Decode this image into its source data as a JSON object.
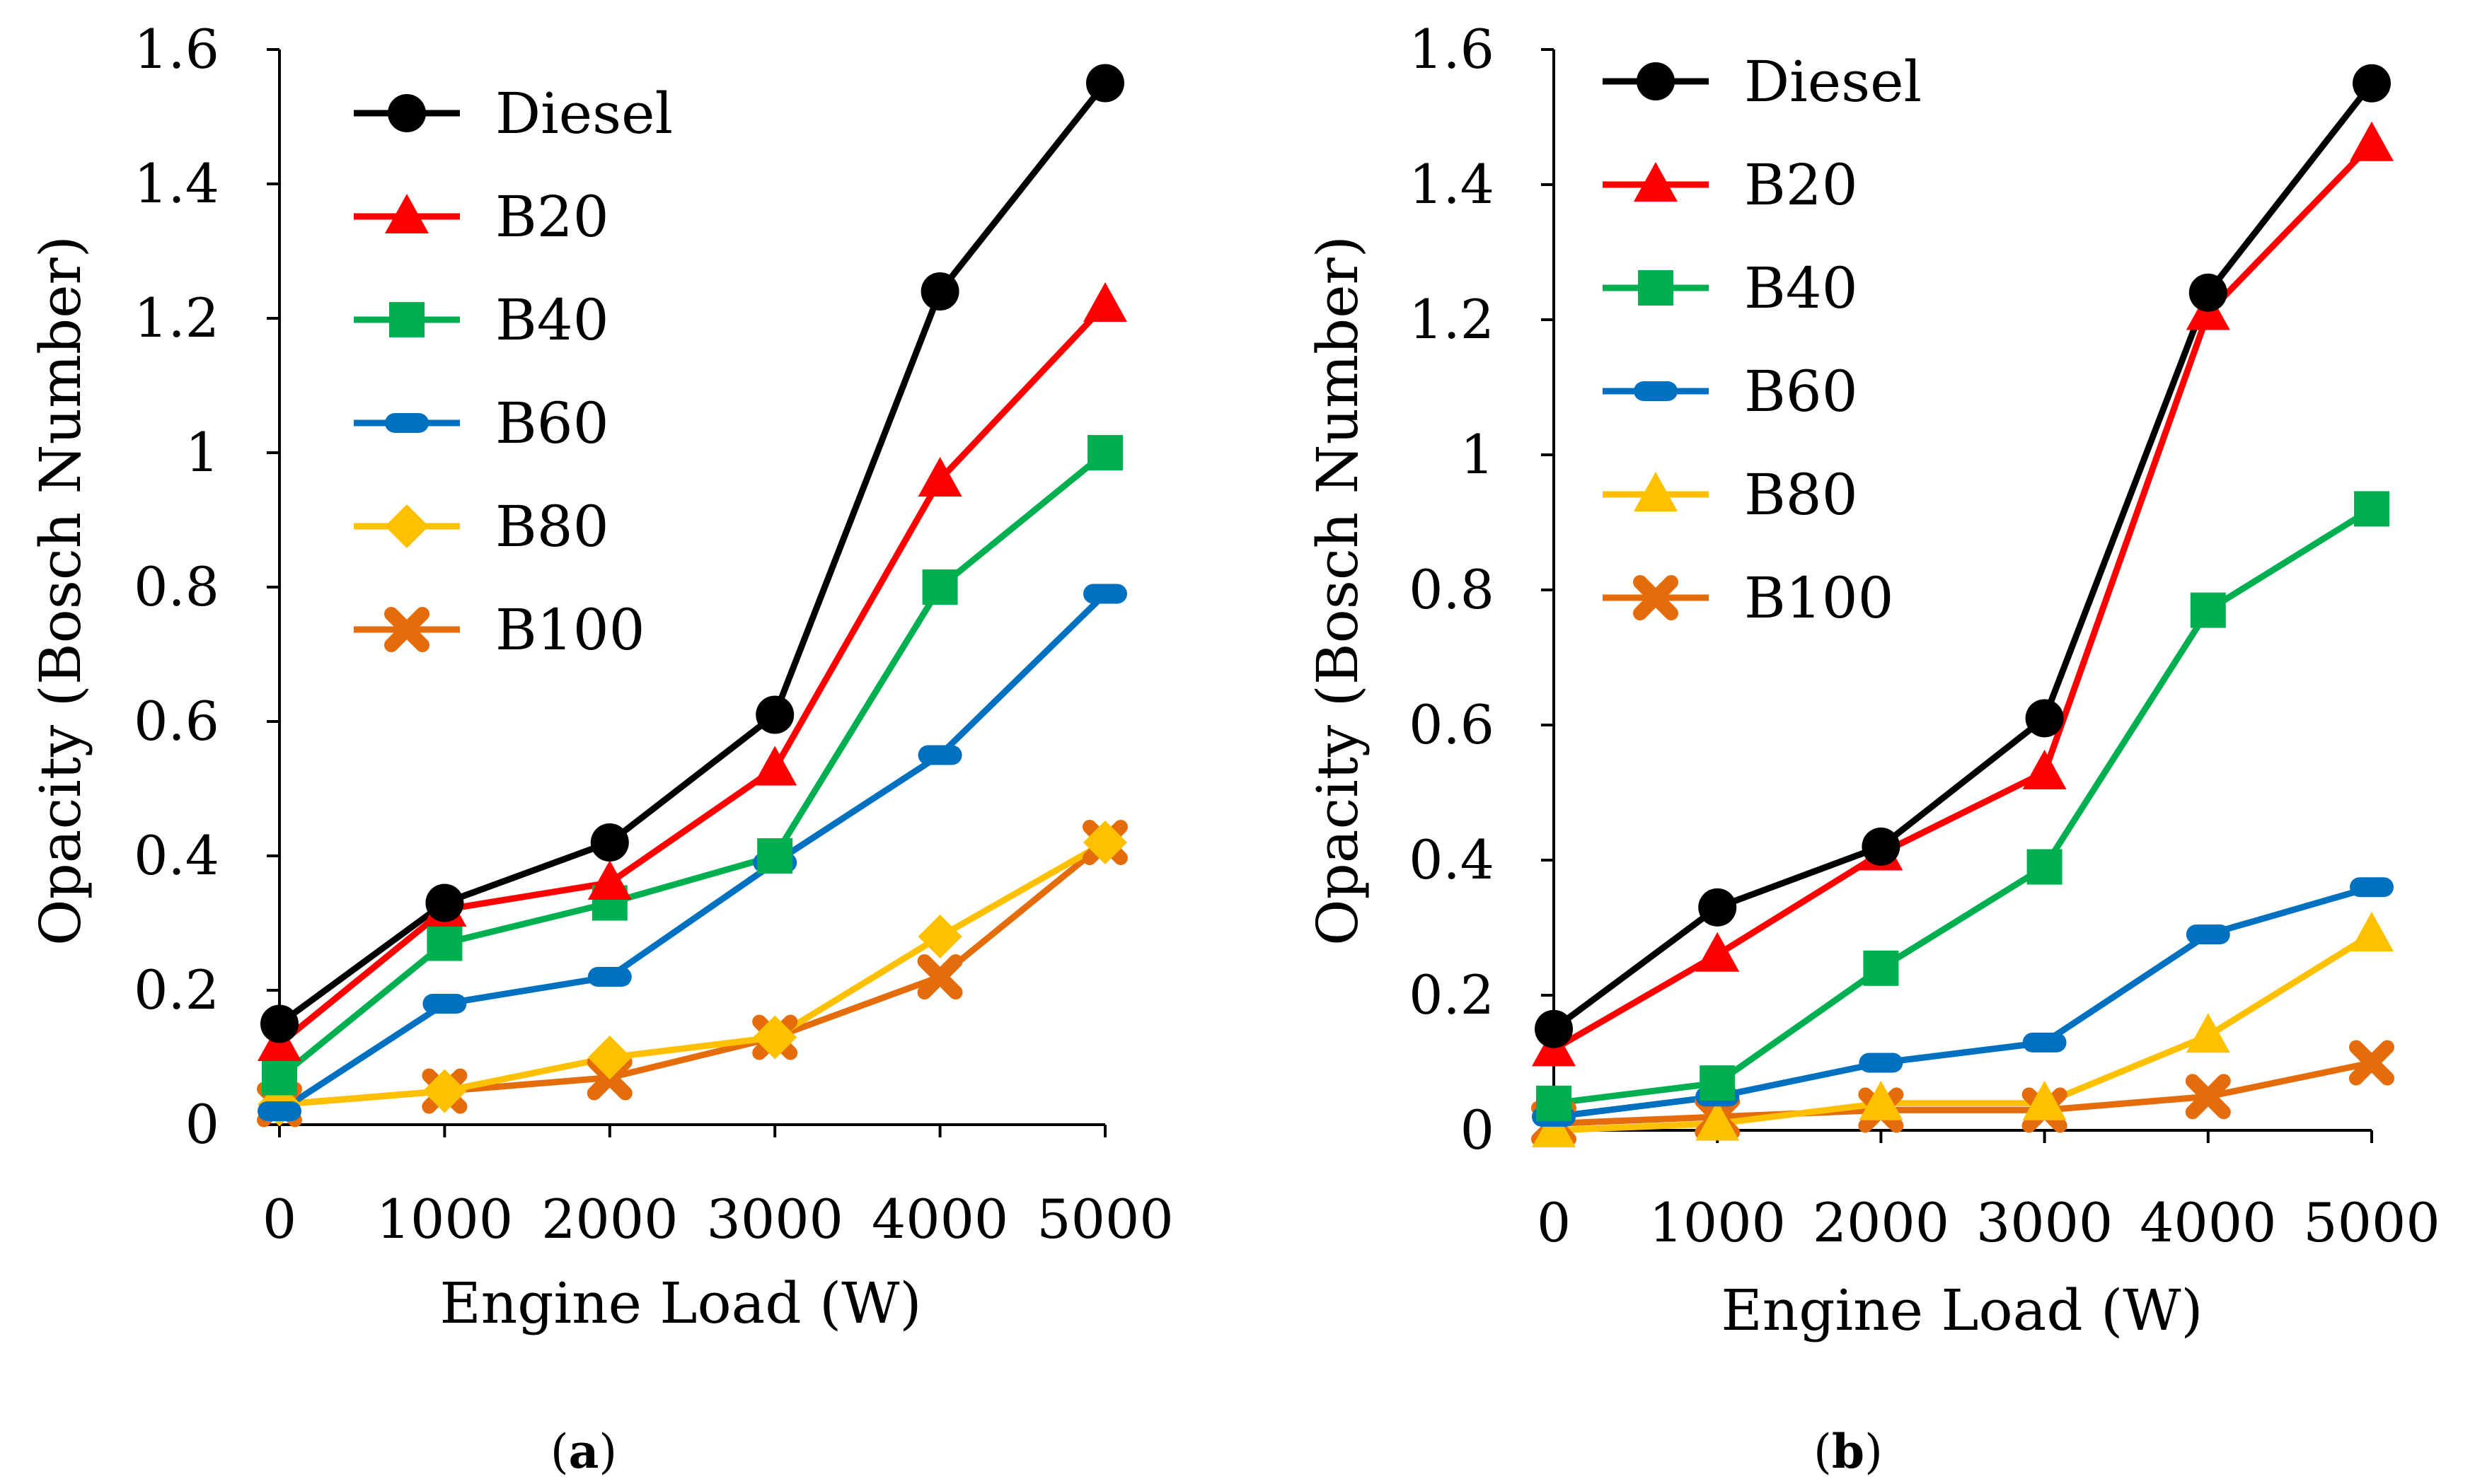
{
  "figure": {
    "panels": [
      {
        "label_open": "(",
        "label_letter": "a",
        "label_close": ")"
      },
      {
        "label_open": "(",
        "label_letter": "b",
        "label_close": ")"
      }
    ]
  },
  "chart_data": [
    {
      "type": "line",
      "panel": "a",
      "title": "",
      "xlabel": "Engine Load (W)",
      "ylabel": "Opacity (Bosch Number)",
      "categories": [
        "0",
        "1000",
        "2000",
        "3000",
        "4000",
        "5000"
      ],
      "x": [
        0,
        1000,
        2000,
        3000,
        4000,
        5000
      ],
      "ylim": [
        0,
        1.6
      ],
      "yticks": [
        0,
        0.2,
        0.4,
        0.6,
        0.8,
        1,
        1.2,
        1.4,
        1.6
      ],
      "ytick_labels": [
        "0",
        "0.2",
        "0.4",
        "0.6",
        "0.8",
        "1",
        "1.2",
        "1.4",
        "1.6"
      ],
      "legend_position": "top-left",
      "series": [
        {
          "name": "Diesel",
          "color": "#000000",
          "marker": "circle",
          "values": [
            0.15,
            0.33,
            0.42,
            0.61,
            1.24,
            1.55
          ]
        },
        {
          "name": "B20",
          "color": "#ff0000",
          "marker": "triangle",
          "values": [
            0.12,
            0.32,
            0.36,
            0.53,
            0.96,
            1.22
          ]
        },
        {
          "name": "B40",
          "color": "#00b050",
          "marker": "square",
          "values": [
            0.07,
            0.27,
            0.33,
            0.4,
            0.8,
            1.0
          ]
        },
        {
          "name": "B60",
          "color": "#0070c0",
          "marker": "dash",
          "values": [
            0.02,
            0.18,
            0.22,
            0.39,
            0.55,
            0.79
          ]
        },
        {
          "name": "B80",
          "color": "#ffc000",
          "marker": "diamond",
          "values": [
            0.03,
            0.05,
            0.1,
            0.13,
            0.28,
            0.42
          ]
        },
        {
          "name": "B100",
          "color": "#e46c0a",
          "marker": "x",
          "values": [
            0.03,
            0.05,
            0.07,
            0.13,
            0.22,
            0.42
          ]
        }
      ]
    },
    {
      "type": "line",
      "panel": "b",
      "title": "",
      "xlabel": "Engine Load (W)",
      "ylabel": "Opacity (Bosch Number)",
      "categories": [
        "0",
        "1000",
        "2000",
        "3000",
        "4000",
        "5000"
      ],
      "x": [
        0,
        1000,
        2000,
        3000,
        4000,
        5000
      ],
      "ylim": [
        0,
        1.6
      ],
      "yticks": [
        0,
        0.2,
        0.4,
        0.6,
        0.8,
        1,
        1.2,
        1.4,
        1.6
      ],
      "ytick_labels": [
        "0",
        "0.2",
        "0.4",
        "0.6",
        "0.8",
        "1",
        "1.2",
        "1.4",
        "1.6"
      ],
      "legend_position": "top-left",
      "series": [
        {
          "name": "Diesel",
          "color": "#000000",
          "marker": "circle",
          "values": [
            0.15,
            0.33,
            0.42,
            0.61,
            1.24,
            1.55
          ]
        },
        {
          "name": "B20",
          "color": "#ff0000",
          "marker": "triangle",
          "values": [
            0.12,
            0.26,
            0.41,
            0.53,
            1.21,
            1.46
          ]
        },
        {
          "name": "B40",
          "color": "#00b050",
          "marker": "square",
          "values": [
            0.04,
            0.07,
            0.24,
            0.39,
            0.77,
            0.92
          ]
        },
        {
          "name": "B60",
          "color": "#0070c0",
          "marker": "dash",
          "values": [
            0.02,
            0.05,
            0.1,
            0.13,
            0.29,
            0.36
          ]
        },
        {
          "name": "B80",
          "color": "#ffc000",
          "marker": "triangle",
          "values": [
            0.0,
            0.01,
            0.04,
            0.04,
            0.14,
            0.29
          ]
        },
        {
          "name": "B100",
          "color": "#e46c0a",
          "marker": "x",
          "values": [
            0.01,
            0.02,
            0.03,
            0.03,
            0.05,
            0.1
          ]
        }
      ]
    }
  ]
}
